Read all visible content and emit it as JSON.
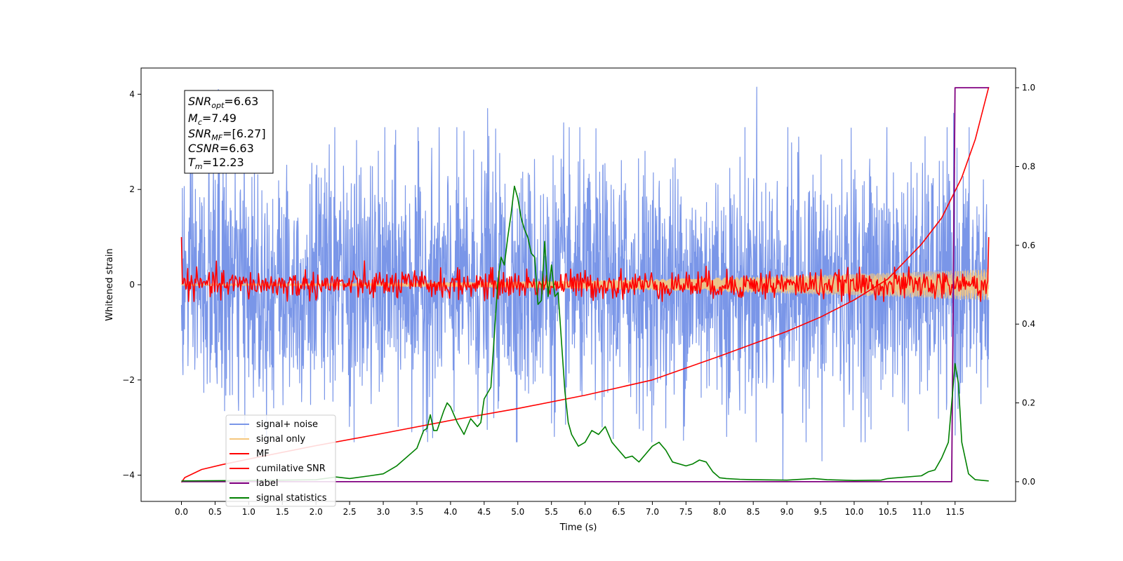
{
  "chart_data": {
    "type": "line",
    "xlabel": "Time (s)",
    "ylabel_left": "Whitened strain",
    "xlim": [
      -0.6,
      12.4
    ],
    "ylim_left": [
      -4.55,
      4.55
    ],
    "ylim_right": [
      -0.05,
      1.05
    ],
    "x_ticks": [
      0.0,
      0.5,
      1.0,
      1.5,
      2.0,
      2.5,
      3.0,
      3.5,
      4.0,
      4.5,
      5.0,
      5.5,
      6.0,
      6.5,
      7.0,
      7.5,
      8.0,
      8.5,
      9.0,
      9.5,
      10.0,
      10.5,
      11.0,
      11.5
    ],
    "x_tick_labels": [
      "0.0",
      "0.5",
      "1.0",
      "1.5",
      "2.0",
      "2.5",
      "3.0",
      "3.5",
      "4.0",
      "4.5",
      "5.0",
      "5.5",
      "6.0",
      "6.5",
      "7.0",
      "7.5",
      "8.0",
      "8.5",
      "9.0",
      "9.5",
      "10.0",
      "10.5",
      "11.0",
      "11.5"
    ],
    "y_left_ticks": [
      -4,
      -2,
      0,
      2,
      4
    ],
    "y_left_tick_labels": [
      "−4",
      "−2",
      "0",
      "2",
      "4"
    ],
    "y_right_ticks": [
      0.0,
      0.2,
      0.4,
      0.6,
      0.8,
      1.0
    ],
    "y_right_tick_labels": [
      "0.0",
      "0.2",
      "0.4",
      "0.6",
      "0.8",
      "1.0"
    ],
    "grid": false,
    "legend_placement": "lower-left",
    "series": [
      {
        "name": "signal+ noise",
        "axis": "left",
        "color": "#7a96e8",
        "kind": "noise",
        "amplitude": 1.25,
        "peaks": [
          [
            0.55,
            4.1
          ],
          [
            2.28,
            3.3
          ],
          [
            4.55,
            3.7
          ],
          [
            5.68,
            3.4
          ],
          [
            8.55,
            4.15
          ],
          [
            11.48,
            3.6
          ],
          [
            8.94,
            -4.1
          ],
          [
            9.52,
            -3.7
          ]
        ]
      },
      {
        "name": "signal only",
        "axis": "left",
        "color": "#f5c77e",
        "kind": "chirp",
        "amplitude_start": 0.02,
        "amplitude_end": 0.32
      },
      {
        "name": "MF",
        "axis": "left",
        "color": "#ff0000",
        "kind": "noise",
        "amplitude": 0.15,
        "start_value": 1.0,
        "end_value": 1.0
      },
      {
        "name": "cumilative SNR",
        "axis": "left",
        "color": "#ff0000",
        "kind": "curve",
        "x": [
          0.0,
          0.05,
          0.3,
          0.6,
          1.0,
          2.0,
          3.0,
          4.0,
          5.0,
          6.0,
          7.0,
          8.0,
          9.0,
          9.5,
          10.0,
          10.5,
          11.0,
          11.3,
          11.6,
          11.8,
          12.0
        ],
        "y": [
          -4.15,
          -4.05,
          -3.88,
          -3.78,
          -3.66,
          -3.38,
          -3.12,
          -2.85,
          -2.6,
          -2.32,
          -2.0,
          -1.5,
          -0.98,
          -0.68,
          -0.32,
          0.12,
          0.85,
          1.4,
          2.25,
          3.05,
          4.15
        ]
      },
      {
        "name": "label",
        "axis": "right",
        "color": "#800080",
        "kind": "step",
        "x": [
          0.0,
          11.45,
          11.5,
          12.0
        ],
        "y": [
          0.0,
          0.0,
          1.0,
          1.0
        ]
      },
      {
        "name": "signal statistics",
        "axis": "right",
        "color": "#008000",
        "kind": "curve",
        "x": [
          0.0,
          1.0,
          2.0,
          2.3,
          2.5,
          2.8,
          3.0,
          3.2,
          3.5,
          3.6,
          3.65,
          3.7,
          3.75,
          3.8,
          3.9,
          3.95,
          4.0,
          4.05,
          4.1,
          4.2,
          4.3,
          4.4,
          4.45,
          4.5,
          4.6,
          4.7,
          4.75,
          4.8,
          4.85,
          4.9,
          4.95,
          5.0,
          5.05,
          5.1,
          5.15,
          5.2,
          5.25,
          5.3,
          5.35,
          5.4,
          5.45,
          5.5,
          5.55,
          5.6,
          5.7,
          5.75,
          5.8,
          5.9,
          6.0,
          6.1,
          6.2,
          6.3,
          6.4,
          6.5,
          6.6,
          6.7,
          6.8,
          6.9,
          7.0,
          7.1,
          7.2,
          7.3,
          7.5,
          7.6,
          7.7,
          7.8,
          7.9,
          8.0,
          8.1,
          8.3,
          8.5,
          9.0,
          9.4,
          9.6,
          10.0,
          10.4,
          10.5,
          11.0,
          11.1,
          11.2,
          11.3,
          11.4,
          11.5,
          11.55,
          11.6,
          11.7,
          11.8,
          12.0
        ],
        "y": [
          0.002,
          0.003,
          0.005,
          0.012,
          0.008,
          0.015,
          0.02,
          0.04,
          0.085,
          0.13,
          0.135,
          0.17,
          0.13,
          0.13,
          0.18,
          0.2,
          0.19,
          0.17,
          0.15,
          0.12,
          0.16,
          0.14,
          0.15,
          0.21,
          0.24,
          0.5,
          0.57,
          0.55,
          0.62,
          0.68,
          0.75,
          0.72,
          0.67,
          0.64,
          0.62,
          0.58,
          0.57,
          0.45,
          0.46,
          0.61,
          0.47,
          0.55,
          0.47,
          0.48,
          0.23,
          0.15,
          0.12,
          0.09,
          0.1,
          0.13,
          0.12,
          0.14,
          0.1,
          0.08,
          0.06,
          0.065,
          0.05,
          0.07,
          0.09,
          0.1,
          0.08,
          0.05,
          0.04,
          0.045,
          0.055,
          0.05,
          0.025,
          0.01,
          0.008,
          0.006,
          0.005,
          0.004,
          0.008,
          0.005,
          0.003,
          0.004,
          0.008,
          0.015,
          0.025,
          0.03,
          0.06,
          0.1,
          0.3,
          0.25,
          0.1,
          0.02,
          0.005,
          0.002
        ]
      }
    ]
  },
  "legend": {
    "items": [
      {
        "label": "signal+ noise",
        "color": "#7a96e8"
      },
      {
        "label": "signal only",
        "color": "#f5c77e"
      },
      {
        "label": "MF",
        "color": "#ff0000"
      },
      {
        "label": "cumilative SNR",
        "color": "#ff0000"
      },
      {
        "label": "label",
        "color": "#800080"
      },
      {
        "label": "signal statistics",
        "color": "#008000"
      }
    ]
  },
  "annotation": {
    "snr_opt": {
      "base": "SNR",
      "sub": "opt",
      "value": "=6.63"
    },
    "mc": {
      "base": "M",
      "sub": "c",
      "value": "=7.49"
    },
    "snr_mf": {
      "base": "SNR",
      "sub": "MF",
      "value": "=[6.27]"
    },
    "csnr": {
      "base": "CSNR",
      "sub": "",
      "value": "=6.63"
    },
    "tm": {
      "base": "T",
      "sub": "m",
      "value": "=12.23"
    }
  }
}
